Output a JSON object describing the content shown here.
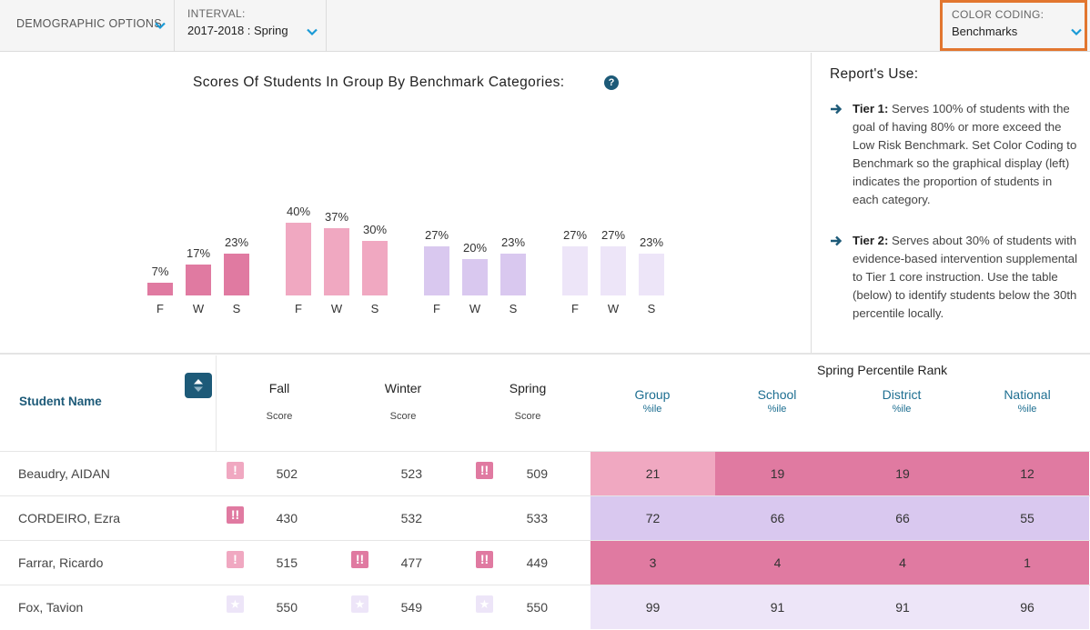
{
  "toolbar": {
    "demographic_label": "DEMOGRAPHIC OPTIONS",
    "interval_label": "INTERVAL:",
    "interval_value": "2017-2018 : Spring",
    "color_label": "COLOR CODING:",
    "color_value": "Benchmarks"
  },
  "colors": {
    "accent": "#1d5a78",
    "highlight_border": "#e2762f",
    "high_risk": "#e07aa1",
    "some_risk": "#f0a8c1",
    "low_risk": "#d9c8ef",
    "college_pathway": "#ede5f8"
  },
  "chart": {
    "title": "Scores Of Students In Group By Benchmark Categories:",
    "help_icon": "question-circle-icon"
  },
  "chart_data": {
    "type": "bar",
    "title": "Scores Of Students In Group By Benchmark Categories:",
    "categories": [
      "F",
      "W",
      "S"
    ],
    "series": [
      {
        "values": [
          7,
          17,
          23
        ],
        "labels": [
          "7%",
          "17%",
          "23%"
        ],
        "color": "#e07aa1"
      },
      {
        "values": [
          40,
          37,
          30
        ],
        "labels": [
          "40%",
          "37%",
          "30%"
        ],
        "color": "#f0a8c1"
      },
      {
        "values": [
          27,
          20,
          23
        ],
        "labels": [
          "27%",
          "20%",
          "23%"
        ],
        "color": "#d9c8ef"
      },
      {
        "values": [
          27,
          27,
          23
        ],
        "labels": [
          "27%",
          "27%",
          "23%"
        ],
        "color": "#ede5f8"
      }
    ],
    "ylim": [
      0,
      40
    ],
    "grid": false
  },
  "report_use": {
    "title": "Report's Use:",
    "items": [
      {
        "tier": "Tier 1:",
        "text": " Serves 100% of students with the goal of having 80% or more exceed the Low Risk Benchmark. Set Color Coding to Benchmark so the graphical display (left) indicates the proportion of students in each category."
      },
      {
        "tier": "Tier 2:",
        "text": " Serves about 30% of students with evidence-based intervention supplemental to Tier 1 core instruction. Use the table (below) to identify students below the 30th percentile locally."
      }
    ]
  },
  "table": {
    "name_header": "Student Name",
    "seasons": [
      "Fall",
      "Winter",
      "Spring"
    ],
    "score_sub": "Score",
    "percentile_group_title": "Spring Percentile Rank",
    "percentile_columns": [
      "Group",
      "School",
      "District",
      "National"
    ],
    "percentile_sub": "%ile",
    "rows": [
      {
        "name": "Beaudry, AIDAN",
        "scores": [
          "502",
          "523",
          "509"
        ],
        "flags": [
          "!",
          "",
          "!!"
        ],
        "flag_colors": [
          "#f0a8c1",
          "",
          "#e07aa1"
        ],
        "percentiles": [
          "21",
          "19",
          "19",
          "12"
        ],
        "pct_colors": [
          "#f0a8c1",
          "#e07aa1",
          "#e07aa1",
          "#e07aa1"
        ]
      },
      {
        "name": "CORDEIRO, Ezra",
        "scores": [
          "430",
          "532",
          "533"
        ],
        "flags": [
          "!!",
          "",
          ""
        ],
        "flag_colors": [
          "#e07aa1",
          "",
          ""
        ],
        "percentiles": [
          "72",
          "66",
          "66",
          "55"
        ],
        "pct_colors": [
          "#d9c8ef",
          "#d9c8ef",
          "#d9c8ef",
          "#d9c8ef"
        ]
      },
      {
        "name": "Farrar, Ricardo",
        "scores": [
          "515",
          "477",
          "449"
        ],
        "flags": [
          "!",
          "!!",
          "!!"
        ],
        "flag_colors": [
          "#f0a8c1",
          "#e07aa1",
          "#e07aa1"
        ],
        "percentiles": [
          "3",
          "4",
          "4",
          "1"
        ],
        "pct_colors": [
          "#e07aa1",
          "#e07aa1",
          "#e07aa1",
          "#e07aa1"
        ]
      },
      {
        "name": "Fox, Tavion",
        "scores": [
          "550",
          "549",
          "550"
        ],
        "flags": [
          "★",
          "★",
          "★"
        ],
        "flag_colors": [
          "#ede5f8",
          "#ede5f8",
          "#ede5f8"
        ],
        "percentiles": [
          "99",
          "91",
          "91",
          "96"
        ],
        "pct_colors": [
          "#ede5f8",
          "#ede5f8",
          "#ede5f8",
          "#ede5f8"
        ]
      }
    ]
  }
}
